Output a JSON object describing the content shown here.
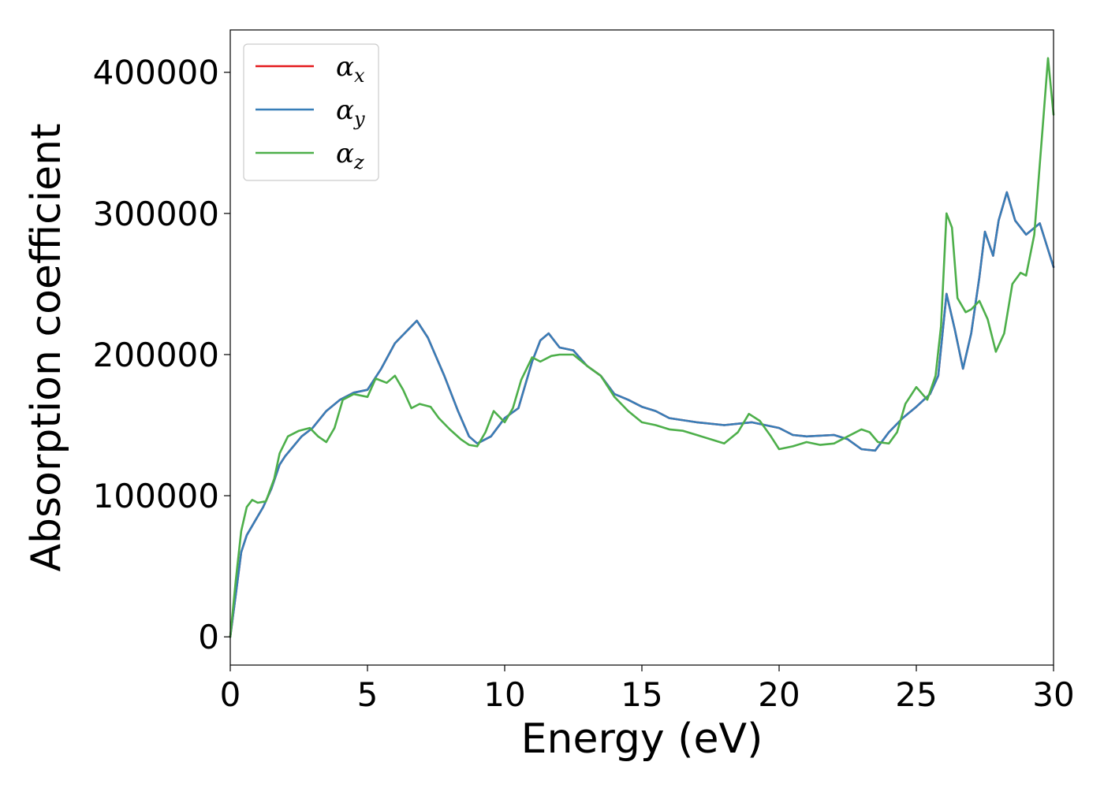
{
  "chart_data": {
    "type": "line",
    "xlabel": "Energy (eV)",
    "ylabel": "Absorption coefficient",
    "xlim": [
      0,
      30
    ],
    "ylim": [
      -20000,
      430000
    ],
    "x_ticks": [
      "0",
      "5",
      "10",
      "15",
      "20",
      "25",
      "30"
    ],
    "x_tick_values": [
      0,
      5,
      10,
      15,
      20,
      25,
      30
    ],
    "y_ticks": [
      "0",
      "100000",
      "200000",
      "300000",
      "400000"
    ],
    "y_tick_values": [
      0,
      100000,
      200000,
      300000,
      400000
    ],
    "grid": false,
    "legend_position": "top-left",
    "series": [
      {
        "name": "α_x",
        "legend_base": "α",
        "legend_sub": "x",
        "color": "#e41a1c",
        "x": [
          0,
          0.2,
          0.4,
          0.6,
          0.9,
          1.2,
          1.5,
          1.8,
          2.0,
          2.3,
          2.6,
          3.0,
          3.5,
          4.0,
          4.5,
          5.0,
          5.5,
          6.0,
          6.5,
          6.8,
          7.2,
          7.8,
          8.3,
          8.7,
          9.0,
          9.5,
          10.0,
          10.5,
          11.0,
          11.3,
          11.6,
          12.0,
          12.5,
          13.0,
          13.5,
          14.0,
          14.5,
          15.0,
          15.5,
          16.0,
          17.0,
          18.0,
          19.0,
          20.0,
          20.5,
          21.0,
          22.0,
          22.5,
          23.0,
          23.5,
          24.0,
          24.5,
          25.0,
          25.5,
          25.8,
          26.1,
          26.4,
          26.7,
          27.0,
          27.3,
          27.5,
          27.8,
          28.0,
          28.3,
          28.6,
          29.0,
          29.5,
          30.0
        ],
        "y": [
          0,
          30000,
          60000,
          72000,
          82000,
          92000,
          105000,
          122000,
          128000,
          135000,
          142000,
          148000,
          160000,
          168000,
          173000,
          175000,
          190000,
          208000,
          218000,
          224000,
          212000,
          185000,
          160000,
          142000,
          137000,
          142000,
          155000,
          162000,
          195000,
          210000,
          215000,
          205000,
          203000,
          192000,
          185000,
          172000,
          168000,
          163000,
          160000,
          155000,
          152000,
          150000,
          152000,
          148000,
          143000,
          142000,
          143000,
          140000,
          133000,
          132000,
          145000,
          155000,
          163000,
          172000,
          185000,
          243000,
          218000,
          190000,
          215000,
          255000,
          287000,
          270000,
          295000,
          315000,
          295000,
          285000,
          293000,
          262000
        ]
      },
      {
        "name": "α_y",
        "legend_base": "α",
        "legend_sub": "y",
        "color": "#377eb8",
        "x": [
          0,
          0.2,
          0.4,
          0.6,
          0.9,
          1.2,
          1.5,
          1.8,
          2.0,
          2.3,
          2.6,
          3.0,
          3.5,
          4.0,
          4.5,
          5.0,
          5.5,
          6.0,
          6.5,
          6.8,
          7.2,
          7.8,
          8.3,
          8.7,
          9.0,
          9.5,
          10.0,
          10.5,
          11.0,
          11.3,
          11.6,
          12.0,
          12.5,
          13.0,
          13.5,
          14.0,
          14.5,
          15.0,
          15.5,
          16.0,
          17.0,
          18.0,
          19.0,
          20.0,
          20.5,
          21.0,
          22.0,
          22.5,
          23.0,
          23.5,
          24.0,
          24.5,
          25.0,
          25.5,
          25.8,
          26.1,
          26.4,
          26.7,
          27.0,
          27.3,
          27.5,
          27.8,
          28.0,
          28.3,
          28.6,
          29.0,
          29.5,
          30.0
        ],
        "y": [
          0,
          30000,
          60000,
          72000,
          82000,
          92000,
          105000,
          122000,
          128000,
          135000,
          142000,
          148000,
          160000,
          168000,
          173000,
          175000,
          190000,
          208000,
          218000,
          224000,
          212000,
          185000,
          160000,
          142000,
          137000,
          142000,
          155000,
          162000,
          195000,
          210000,
          215000,
          205000,
          203000,
          192000,
          185000,
          172000,
          168000,
          163000,
          160000,
          155000,
          152000,
          150000,
          152000,
          148000,
          143000,
          142000,
          143000,
          140000,
          133000,
          132000,
          145000,
          155000,
          163000,
          172000,
          185000,
          243000,
          218000,
          190000,
          215000,
          255000,
          287000,
          270000,
          295000,
          315000,
          295000,
          285000,
          293000,
          262000
        ]
      },
      {
        "name": "α_z",
        "legend_base": "α",
        "legend_sub": "z",
        "color": "#4daf4a",
        "x": [
          0,
          0.2,
          0.4,
          0.6,
          0.8,
          1.0,
          1.3,
          1.6,
          1.8,
          2.1,
          2.5,
          2.9,
          3.2,
          3.5,
          3.8,
          4.1,
          4.5,
          5.0,
          5.3,
          5.7,
          6.0,
          6.3,
          6.6,
          6.9,
          7.3,
          7.6,
          8.0,
          8.4,
          8.7,
          9.0,
          9.3,
          9.6,
          10.0,
          10.3,
          10.6,
          11.0,
          11.3,
          11.7,
          12.0,
          12.5,
          13.0,
          13.5,
          14.0,
          14.5,
          15.0,
          15.5,
          16.0,
          16.5,
          17.0,
          17.5,
          18.0,
          18.5,
          18.9,
          19.3,
          19.7,
          20.0,
          20.5,
          21.0,
          21.5,
          22.0,
          22.5,
          23.0,
          23.3,
          23.6,
          24.0,
          24.3,
          24.6,
          25.0,
          25.4,
          25.7,
          25.9,
          26.1,
          26.3,
          26.5,
          26.8,
          27.0,
          27.3,
          27.6,
          27.9,
          28.2,
          28.5,
          28.8,
          29.0,
          29.3,
          29.6,
          29.8,
          30.0
        ],
        "y": [
          0,
          40000,
          75000,
          92000,
          97000,
          95000,
          96000,
          112000,
          130000,
          142000,
          146000,
          148000,
          142000,
          138000,
          148000,
          168000,
          172000,
          170000,
          183000,
          180000,
          185000,
          175000,
          162000,
          165000,
          163000,
          155000,
          147000,
          140000,
          136000,
          135000,
          145000,
          160000,
          152000,
          162000,
          182000,
          198000,
          195000,
          199000,
          200000,
          200000,
          192000,
          185000,
          170000,
          160000,
          152000,
          150000,
          147000,
          146000,
          143000,
          140000,
          137000,
          145000,
          158000,
          153000,
          142000,
          133000,
          135000,
          138000,
          136000,
          137000,
          142000,
          147000,
          145000,
          138000,
          137000,
          145000,
          165000,
          177000,
          168000,
          185000,
          220000,
          300000,
          290000,
          240000,
          230000,
          232000,
          238000,
          225000,
          202000,
          215000,
          250000,
          258000,
          256000,
          285000,
          360000,
          410000,
          370000
        ]
      }
    ]
  }
}
